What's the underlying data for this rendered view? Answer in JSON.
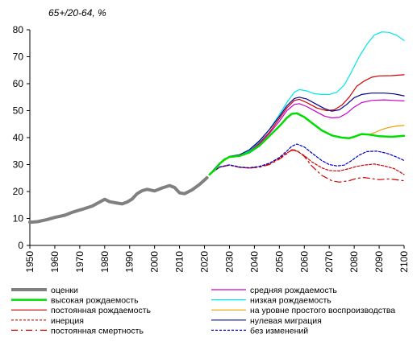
{
  "chart_data": {
    "type": "line",
    "title": "",
    "ylabel": "65+/20-64, %",
    "xlabel": "",
    "xlim": [
      1950,
      2100
    ],
    "ylim": [
      0,
      80
    ],
    "x_ticks": [
      1950,
      1960,
      1970,
      1980,
      1990,
      2000,
      2010,
      2020,
      2030,
      2040,
      2050,
      2060,
      2070,
      2080,
      2090,
      2100
    ],
    "y_ticks": [
      0,
      10,
      20,
      30,
      40,
      50,
      60,
      70,
      80
    ],
    "grid": false,
    "legend_position": "bottom",
    "series": [
      {
        "name": "оценки",
        "color": "#808080",
        "dash": "",
        "width": 4,
        "points": [
          [
            1950,
            8.6
          ],
          [
            1953,
            8.8
          ],
          [
            1957,
            9.6
          ],
          [
            1960,
            10.4
          ],
          [
            1964,
            11.2
          ],
          [
            1967,
            12.3
          ],
          [
            1971,
            13.4
          ],
          [
            1975,
            14.6
          ],
          [
            1979,
            16.6
          ],
          [
            1980,
            17.1
          ],
          [
            1982,
            16.2
          ],
          [
            1985,
            15.7
          ],
          [
            1987,
            15.4
          ],
          [
            1989,
            16.1
          ],
          [
            1991,
            17.2
          ],
          [
            1993,
            19.2
          ],
          [
            1995,
            20.3
          ],
          [
            1997,
            20.8
          ],
          [
            2000,
            20.2
          ],
          [
            2003,
            21.3
          ],
          [
            2006,
            22.2
          ],
          [
            2008,
            21.5
          ],
          [
            2010,
            19.5
          ],
          [
            2012,
            19.2
          ],
          [
            2015,
            20.6
          ],
          [
            2018,
            22.6
          ],
          [
            2021,
            25.1
          ]
        ]
      },
      {
        "name": "высокая рождаемость",
        "color": "#00dd00",
        "dash": "",
        "width": 2.5,
        "points": [
          [
            2022,
            26.3
          ],
          [
            2024,
            28.0
          ],
          [
            2026,
            30.2
          ],
          [
            2028,
            31.9
          ],
          [
            2030,
            32.8
          ],
          [
            2034,
            33.2
          ],
          [
            2038,
            34.5
          ],
          [
            2042,
            37.0
          ],
          [
            2046,
            40.6
          ],
          [
            2050,
            44.2
          ],
          [
            2053,
            47.3
          ],
          [
            2055,
            48.8
          ],
          [
            2057,
            49.0
          ],
          [
            2060,
            47.6
          ],
          [
            2063,
            45.5
          ],
          [
            2067,
            42.7
          ],
          [
            2071,
            40.8
          ],
          [
            2075,
            40.0
          ],
          [
            2078,
            39.8
          ],
          [
            2080,
            40.3
          ],
          [
            2083,
            41.3
          ],
          [
            2086,
            41.1
          ],
          [
            2090,
            40.5
          ],
          [
            2095,
            40.3
          ],
          [
            2100,
            40.7
          ]
        ]
      },
      {
        "name": "постоянная рождаемость",
        "color": "#cc0000",
        "dash": "",
        "width": 1.2,
        "points": [
          [
            2022,
            26.3
          ],
          [
            2026,
            30.4
          ],
          [
            2030,
            32.8
          ],
          [
            2034,
            33.3
          ],
          [
            2038,
            35.0
          ],
          [
            2042,
            38.0
          ],
          [
            2046,
            42.0
          ],
          [
            2050,
            47.0
          ],
          [
            2053,
            51.0
          ],
          [
            2056,
            53.8
          ],
          [
            2058,
            54.2
          ],
          [
            2061,
            53.0
          ],
          [
            2065,
            51.0
          ],
          [
            2069,
            50.0
          ],
          [
            2072,
            50.3
          ],
          [
            2075,
            52.0
          ],
          [
            2078,
            55.0
          ],
          [
            2081,
            59.0
          ],
          [
            2084,
            61.0
          ],
          [
            2087,
            62.4
          ],
          [
            2090,
            62.9
          ],
          [
            2095,
            63.0
          ],
          [
            2100,
            63.3
          ]
        ]
      },
      {
        "name": "инерция",
        "color": "#cc0000",
        "dash": "3,2",
        "width": 1.2,
        "points": [
          [
            2022,
            26.3
          ],
          [
            2026,
            29.0
          ],
          [
            2030,
            29.8
          ],
          [
            2034,
            29.0
          ],
          [
            2038,
            28.7
          ],
          [
            2042,
            29.2
          ],
          [
            2046,
            30.3
          ],
          [
            2050,
            32.3
          ],
          [
            2053,
            34.3
          ],
          [
            2055,
            35.3
          ],
          [
            2057,
            35.0
          ],
          [
            2060,
            33.3
          ],
          [
            2063,
            31.0
          ],
          [
            2067,
            28.8
          ],
          [
            2070,
            27.8
          ],
          [
            2074,
            27.6
          ],
          [
            2078,
            28.5
          ],
          [
            2081,
            29.3
          ],
          [
            2084,
            29.8
          ],
          [
            2088,
            30.2
          ],
          [
            2092,
            29.5
          ],
          [
            2096,
            28.5
          ],
          [
            2100,
            26.3
          ]
        ]
      },
      {
        "name": "постоянная смертность",
        "color": "#cc0000",
        "dash": "8,4,2,4",
        "width": 1.2,
        "points": [
          [
            2022,
            26.3
          ],
          [
            2026,
            29.0
          ],
          [
            2030,
            29.8
          ],
          [
            2034,
            29.0
          ],
          [
            2038,
            28.7
          ],
          [
            2042,
            29.0
          ],
          [
            2046,
            30.0
          ],
          [
            2050,
            32.0
          ],
          [
            2053,
            34.0
          ],
          [
            2055,
            35.5
          ],
          [
            2057,
            35.3
          ],
          [
            2060,
            33.0
          ],
          [
            2063,
            29.5
          ],
          [
            2067,
            26.0
          ],
          [
            2071,
            24.0
          ],
          [
            2074,
            23.5
          ],
          [
            2078,
            24.0
          ],
          [
            2081,
            24.9
          ],
          [
            2084,
            25.2
          ],
          [
            2087,
            24.8
          ],
          [
            2090,
            24.4
          ],
          [
            2094,
            24.7
          ],
          [
            2100,
            24.0
          ]
        ]
      },
      {
        "name": "средняя рождаемость",
        "color": "#cc00cc",
        "dash": "",
        "width": 1.2,
        "points": [
          [
            2022,
            26.3
          ],
          [
            2026,
            30.3
          ],
          [
            2030,
            32.8
          ],
          [
            2034,
            33.2
          ],
          [
            2038,
            34.8
          ],
          [
            2042,
            37.6
          ],
          [
            2046,
            41.5
          ],
          [
            2050,
            46.0
          ],
          [
            2053,
            50.0
          ],
          [
            2056,
            52.3
          ],
          [
            2058,
            52.6
          ],
          [
            2061,
            51.5
          ],
          [
            2065,
            49.5
          ],
          [
            2068,
            48.0
          ],
          [
            2071,
            47.3
          ],
          [
            2074,
            47.5
          ],
          [
            2077,
            49.0
          ],
          [
            2080,
            51.3
          ],
          [
            2083,
            53.0
          ],
          [
            2087,
            53.8
          ],
          [
            2092,
            54.0
          ],
          [
            2096,
            53.8
          ],
          [
            2100,
            53.6
          ]
        ]
      },
      {
        "name": "низкая рождаемость",
        "color": "#00e5e5",
        "dash": "",
        "width": 1.2,
        "points": [
          [
            2022,
            26.3
          ],
          [
            2026,
            30.4
          ],
          [
            2030,
            32.9
          ],
          [
            2034,
            33.4
          ],
          [
            2038,
            35.2
          ],
          [
            2042,
            38.5
          ],
          [
            2046,
            43.0
          ],
          [
            2050,
            48.5
          ],
          [
            2053,
            53.0
          ],
          [
            2056,
            56.8
          ],
          [
            2058,
            57.8
          ],
          [
            2061,
            57.3
          ],
          [
            2064,
            56.3
          ],
          [
            2067,
            56.0
          ],
          [
            2070,
            56.0
          ],
          [
            2073,
            56.8
          ],
          [
            2076,
            59.5
          ],
          [
            2079,
            64.5
          ],
          [
            2082,
            70.0
          ],
          [
            2085,
            74.5
          ],
          [
            2088,
            78.0
          ],
          [
            2091,
            79.2
          ],
          [
            2094,
            79.0
          ],
          [
            2097,
            78.0
          ],
          [
            2100,
            76.0
          ]
        ]
      },
      {
        "name": "на уровне простого воспроизводства",
        "color": "#f0a000",
        "dash": "",
        "width": 1.2,
        "points": [
          [
            2022,
            26.3
          ],
          [
            2026,
            30.2
          ],
          [
            2030,
            32.8
          ],
          [
            2034,
            33.2
          ],
          [
            2038,
            34.5
          ],
          [
            2042,
            37.0
          ],
          [
            2046,
            40.6
          ],
          [
            2050,
            44.2
          ],
          [
            2053,
            47.3
          ],
          [
            2055,
            48.8
          ],
          [
            2057,
            49.0
          ],
          [
            2060,
            47.6
          ],
          [
            2063,
            45.5
          ],
          [
            2067,
            42.7
          ],
          [
            2071,
            40.8
          ],
          [
            2075,
            40.0
          ],
          [
            2078,
            39.8
          ],
          [
            2080,
            40.3
          ],
          [
            2083,
            41.3
          ],
          [
            2086,
            41.1
          ],
          [
            2088,
            41.8
          ],
          [
            2091,
            43.0
          ],
          [
            2094,
            43.8
          ],
          [
            2097,
            44.3
          ],
          [
            2100,
            44.5
          ]
        ]
      },
      {
        "name": "нулевая миграция",
        "color": "#00008b",
        "dash": "",
        "width": 1.2,
        "points": [
          [
            2022,
            26.3
          ],
          [
            2026,
            30.5
          ],
          [
            2030,
            33.0
          ],
          [
            2034,
            33.6
          ],
          [
            2038,
            35.5
          ],
          [
            2042,
            38.8
          ],
          [
            2046,
            43.0
          ],
          [
            2050,
            47.8
          ],
          [
            2053,
            51.8
          ],
          [
            2056,
            54.5
          ],
          [
            2058,
            55.0
          ],
          [
            2061,
            54.3
          ],
          [
            2065,
            52.3
          ],
          [
            2068,
            50.8
          ],
          [
            2071,
            49.8
          ],
          [
            2074,
            50.3
          ],
          [
            2077,
            52.3
          ],
          [
            2080,
            54.8
          ],
          [
            2083,
            56.0
          ],
          [
            2087,
            56.5
          ],
          [
            2092,
            56.5
          ],
          [
            2096,
            56.2
          ],
          [
            2100,
            55.5
          ]
        ]
      },
      {
        "name": "без изменений",
        "color": "#0000cc",
        "dash": "3,2",
        "width": 1.2,
        "points": [
          [
            2022,
            26.3
          ],
          [
            2026,
            29.1
          ],
          [
            2030,
            29.9
          ],
          [
            2034,
            29.1
          ],
          [
            2038,
            28.8
          ],
          [
            2042,
            29.3
          ],
          [
            2046,
            30.5
          ],
          [
            2050,
            32.6
          ],
          [
            2053,
            35.0
          ],
          [
            2055,
            36.8
          ],
          [
            2057,
            37.6
          ],
          [
            2060,
            36.5
          ],
          [
            2063,
            34.3
          ],
          [
            2067,
            31.5
          ],
          [
            2070,
            30.0
          ],
          [
            2073,
            29.5
          ],
          [
            2076,
            29.8
          ],
          [
            2079,
            31.5
          ],
          [
            2082,
            33.5
          ],
          [
            2085,
            34.8
          ],
          [
            2089,
            35.0
          ],
          [
            2093,
            34.2
          ],
          [
            2097,
            32.8
          ],
          [
            2100,
            31.5
          ]
        ]
      }
    ],
    "legend_layout": {
      "left": [
        "оценки",
        "высокая рождаемость",
        "постоянная рождаемость",
        "инерция",
        "постоянная смертность"
      ],
      "right": [
        "средняя рождаемость",
        "низкая рождаемость",
        "на уровне простого воспроизводства",
        "нулевая миграция",
        "без изменений"
      ]
    }
  }
}
